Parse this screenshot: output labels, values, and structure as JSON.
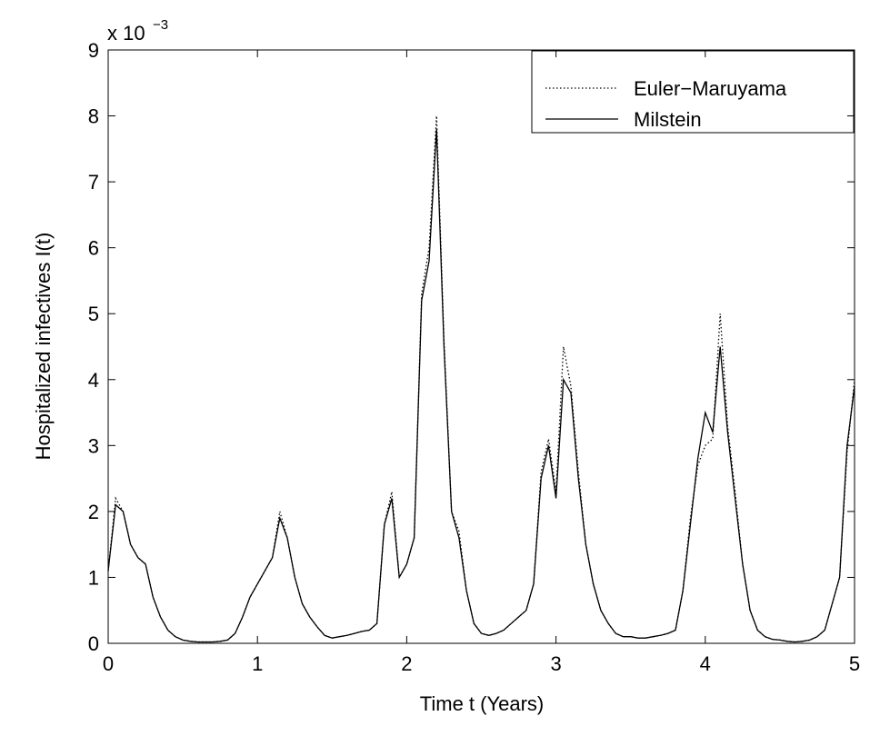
{
  "chart_data": {
    "type": "line",
    "xlabel": "Time t (Years)",
    "ylabel": "Hospitalized infectives I(t)",
    "y_scale_label": {
      "base": "x 10",
      "exponent": "−3"
    },
    "x": [
      0,
      0.05,
      0.1,
      0.15,
      0.2,
      0.25,
      0.3,
      0.35,
      0.4,
      0.45,
      0.5,
      0.55,
      0.6,
      0.65,
      0.7,
      0.75,
      0.8,
      0.85,
      0.9,
      0.95,
      1,
      1.05,
      1.1,
      1.15,
      1.2,
      1.25,
      1.3,
      1.35,
      1.4,
      1.45,
      1.5,
      1.55,
      1.6,
      1.65,
      1.7,
      1.75,
      1.8,
      1.85,
      1.9,
      1.95,
      2,
      2.05,
      2.1,
      2.15,
      2.2,
      2.25,
      2.3,
      2.35,
      2.4,
      2.45,
      2.5,
      2.55,
      2.6,
      2.65,
      2.7,
      2.75,
      2.8,
      2.85,
      2.9,
      2.95,
      3,
      3.05,
      3.1,
      3.15,
      3.2,
      3.25,
      3.3,
      3.35,
      3.4,
      3.45,
      3.5,
      3.55,
      3.6,
      3.65,
      3.7,
      3.75,
      3.8,
      3.85,
      3.9,
      3.95,
      4,
      4.05,
      4.1,
      4.15,
      4.2,
      4.25,
      4.3,
      4.35,
      4.4,
      4.45,
      4.5,
      4.55,
      4.6,
      4.65,
      4.7,
      4.75,
      4.8,
      4.85,
      4.9,
      4.95,
      5
    ],
    "series": [
      {
        "name": "Euler−Maruyama",
        "color": "#000000",
        "dash": "dotted",
        "values": [
          1.1,
          2.2,
          2.0,
          1.5,
          1.3,
          1.2,
          0.7,
          0.4,
          0.2,
          0.1,
          0.05,
          0.03,
          0.02,
          0.02,
          0.02,
          0.03,
          0.05,
          0.15,
          0.4,
          0.7,
          0.9,
          1.1,
          1.3,
          2.0,
          1.6,
          1.0,
          0.6,
          0.4,
          0.25,
          0.12,
          0.08,
          0.1,
          0.12,
          0.15,
          0.18,
          0.2,
          0.3,
          1.8,
          2.3,
          1.0,
          1.2,
          1.6,
          5.3,
          6.0,
          8.0,
          4.6,
          2.0,
          1.7,
          0.8,
          0.3,
          0.15,
          0.12,
          0.15,
          0.2,
          0.3,
          0.4,
          0.5,
          0.9,
          2.6,
          3.1,
          2.3,
          4.5,
          3.9,
          2.6,
          1.5,
          0.9,
          0.5,
          0.3,
          0.15,
          0.1,
          0.1,
          0.08,
          0.08,
          0.1,
          0.12,
          0.15,
          0.2,
          0.8,
          1.9,
          2.7,
          3.0,
          3.1,
          5.0,
          3.3,
          2.3,
          1.2,
          0.5,
          0.2,
          0.1,
          0.06,
          0.05,
          0.03,
          0.02,
          0.03,
          0.05,
          0.1,
          0.2,
          0.6,
          1.0,
          2.9,
          4.0
        ]
      },
      {
        "name": "Milstein",
        "color": "#000000",
        "dash": "solid",
        "values": [
          1.1,
          2.1,
          2.0,
          1.5,
          1.3,
          1.2,
          0.7,
          0.4,
          0.2,
          0.1,
          0.05,
          0.03,
          0.02,
          0.02,
          0.02,
          0.03,
          0.05,
          0.15,
          0.4,
          0.7,
          0.9,
          1.1,
          1.3,
          1.9,
          1.6,
          1.0,
          0.6,
          0.4,
          0.25,
          0.12,
          0.08,
          0.1,
          0.12,
          0.15,
          0.18,
          0.2,
          0.3,
          1.8,
          2.2,
          1.0,
          1.2,
          1.6,
          5.2,
          5.8,
          7.8,
          4.5,
          2.0,
          1.6,
          0.8,
          0.3,
          0.15,
          0.12,
          0.15,
          0.2,
          0.3,
          0.4,
          0.5,
          0.9,
          2.5,
          3.0,
          2.2,
          4.0,
          3.8,
          2.5,
          1.5,
          0.9,
          0.5,
          0.3,
          0.15,
          0.1,
          0.1,
          0.08,
          0.08,
          0.1,
          0.12,
          0.15,
          0.2,
          0.8,
          1.8,
          2.8,
          3.5,
          3.2,
          4.5,
          3.2,
          2.2,
          1.2,
          0.5,
          0.2,
          0.1,
          0.06,
          0.05,
          0.03,
          0.02,
          0.03,
          0.05,
          0.1,
          0.2,
          0.6,
          1.0,
          3.0,
          3.9
        ]
      }
    ],
    "xlim": [
      0,
      5
    ],
    "xticks": [
      0,
      1,
      2,
      3,
      4,
      5
    ],
    "ylim": [
      0,
      9
    ],
    "yticks": [
      0,
      1,
      2,
      3,
      4,
      5,
      6,
      7,
      8,
      9
    ],
    "legend": "upper right",
    "grid": false
  }
}
